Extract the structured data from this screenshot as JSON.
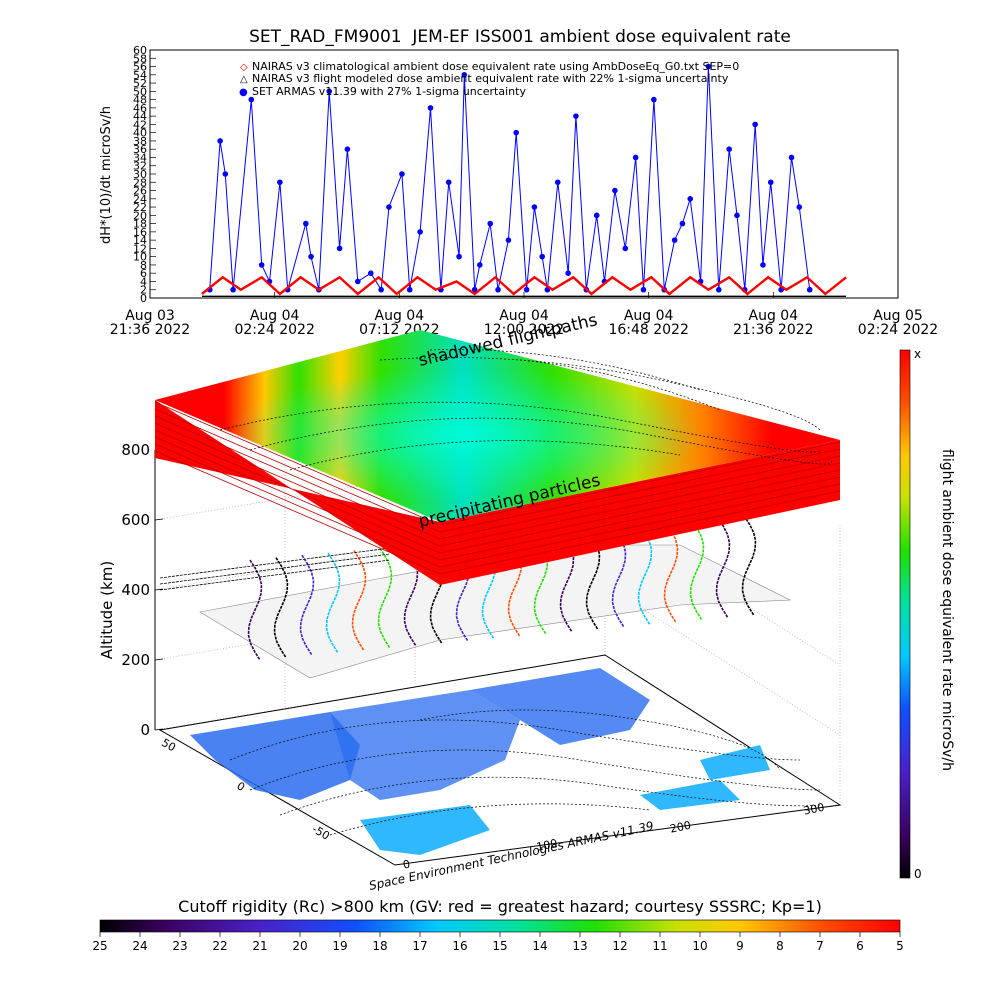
{
  "header": {
    "title": "SET_RAD_FM9001  JEM-EF ISS001 ambient dose equivalent rate"
  },
  "chart_data": [
    {
      "type": "line",
      "title": "SET_RAD_FM9001  JEM-EF ISS001 ambient dose equivalent rate",
      "ylabel": "dH*(10)/dt microSv/h",
      "ylim": [
        0,
        60
      ],
      "yticks": [
        "0",
        "2",
        "4",
        "6",
        "8",
        "10",
        "12",
        "14",
        "16",
        "18",
        "20",
        "22",
        "24",
        "26",
        "28",
        "30",
        "32",
        "34",
        "36",
        "38",
        "40",
        "42",
        "44",
        "46",
        "48",
        "50",
        "52",
        "54",
        "56",
        "58",
        "60"
      ],
      "xticks": [
        {
          "date": "Aug 03",
          "time": "21:36 2022"
        },
        {
          "date": "Aug 04",
          "time": "02:24 2022"
        },
        {
          "date": "Aug 04",
          "time": "07:12 2022"
        },
        {
          "date": "Aug 04",
          "time": "12:00 2022"
        },
        {
          "date": "Aug 04",
          "time": "16:48 2022"
        },
        {
          "date": "Aug 04",
          "time": "21:36 2022"
        },
        {
          "date": "Aug 05",
          "time": "02:24 2022"
        }
      ],
      "legend_placement": "top-left",
      "legend": [
        {
          "symbol": "◇",
          "text": "NAIRAS v3 climatological ambient dose equivalent rate using AmbDoseEq_G0.txt SEP=0",
          "color": "#ff0000"
        },
        {
          "symbol": "△",
          "text": "NAIRAS v3 flight modeled dose ambient equivalent rate with 22% 1-sigma uncertainty",
          "color": "#000000"
        },
        {
          "symbol": "●",
          "text": "SET ARMAS v11.39 with 27% 1-sigma uncertainty",
          "color": "#0000ff"
        }
      ],
      "x_hours": [
        0,
        4.8,
        9.6,
        14.4,
        19.2,
        24.0,
        28.8
      ],
      "series": [
        {
          "name": "SET ARMAS v11.39 with 27% 1-sigma uncertainty",
          "color": "#0000ff",
          "x": [
            2.3,
            2.7,
            2.9,
            3.2,
            3.9,
            4.3,
            4.6,
            5.0,
            5.3,
            6.0,
            6.2,
            6.5,
            6.9,
            7.3,
            7.6,
            8.0,
            8.5,
            8.9,
            9.2,
            9.7,
            10.0,
            10.4,
            10.8,
            11.2,
            11.5,
            11.9,
            12.1,
            12.5,
            12.7,
            13.1,
            13.4,
            13.8,
            14.1,
            14.5,
            14.8,
            15.1,
            15.3,
            15.7,
            16.1,
            16.4,
            16.8,
            17.2,
            17.5,
            17.9,
            18.3,
            18.7,
            19.0,
            19.4,
            19.8,
            20.2,
            20.5,
            20.8,
            21.2,
            21.5,
            21.9,
            22.3,
            22.6,
            22.9,
            23.3,
            23.6,
            23.9,
            24.3,
            24.7,
            25.0,
            25.4
          ],
          "y": [
            2,
            38,
            30,
            2,
            48,
            8,
            4,
            28,
            2,
            18,
            10,
            2,
            50,
            12,
            36,
            4,
            6,
            2,
            22,
            30,
            2,
            16,
            46,
            2,
            28,
            10,
            54,
            2,
            8,
            18,
            2,
            14,
            40,
            2,
            22,
            10,
            2,
            28,
            6,
            44,
            2,
            20,
            4,
            26,
            12,
            34,
            2,
            48,
            2,
            14,
            18,
            24,
            4,
            56,
            2,
            36,
            20,
            2,
            42,
            8,
            28,
            2,
            34,
            22,
            2
          ]
        },
        {
          "name": "NAIRAS v3 climatological ambient dose equivalent rate using AmbDoseEq_G0.txt SEP=0",
          "color": "#ff0000",
          "x": [
            2.0,
            2.8,
            3.5,
            4.3,
            5.0,
            5.8,
            6.5,
            7.3,
            8.0,
            8.8,
            9.5,
            10.3,
            11.0,
            11.8,
            12.5,
            13.3,
            14.0,
            14.8,
            15.5,
            16.3,
            17.0,
            17.8,
            18.5,
            19.3,
            20.0,
            20.8,
            21.5,
            22.3,
            23.0,
            23.8,
            24.5,
            25.3,
            26.0,
            26.8
          ],
          "y": [
            1,
            5,
            2,
            5,
            1,
            5,
            2,
            5,
            1,
            5,
            1,
            5,
            2,
            4,
            1,
            5,
            1,
            5,
            2,
            5,
            1,
            5,
            2,
            5,
            1,
            5,
            2,
            5,
            1,
            5,
            2,
            5,
            1,
            5
          ]
        },
        {
          "name": "NAIRAS v3 flight modeled dose ambient equivalent rate with 22% 1-sigma uncertainty",
          "color": "#000000",
          "x": [
            2.0,
            26.8
          ],
          "y": [
            0.4,
            0.4
          ]
        }
      ]
    },
    {
      "type": "heatmap",
      "title": "",
      "zlabel": "Altitude (km)",
      "ztick_labels": [
        "0",
        "200",
        "400",
        "600",
        "800"
      ],
      "longitude_ticks": [
        "0",
        "100",
        "200",
        "300"
      ],
      "latitude_ticks": [
        "-50",
        "0",
        "50"
      ],
      "colorbar_label": "flight ambient dose equivalent rate microSv/h",
      "colorbar_top": "x",
      "colorbar_bottom": "0",
      "annotations": [
        "shadowed flightpaths",
        "precipitating particles"
      ],
      "footer": "Space Environment Technologies ARMAS v11.39"
    }
  ],
  "bottom_colorbar": {
    "title": "Cutoff rigidity (Rc) >800 km (GV: red = greatest hazard; courtesy SSSRC; Kp=1)",
    "tick_labels": [
      "25",
      "24",
      "23",
      "22",
      "21",
      "20",
      "19",
      "18",
      "17",
      "16",
      "15",
      "14",
      "13",
      "12",
      "11",
      "10",
      "9",
      "8",
      "7",
      "6",
      "5"
    ]
  },
  "colors": {
    "armas": "#0000ff",
    "nairas_climatological": "#ff0000",
    "hazard_red": "#ff0000",
    "ocean": "#2a6cf0",
    "land": "#ffffff"
  }
}
